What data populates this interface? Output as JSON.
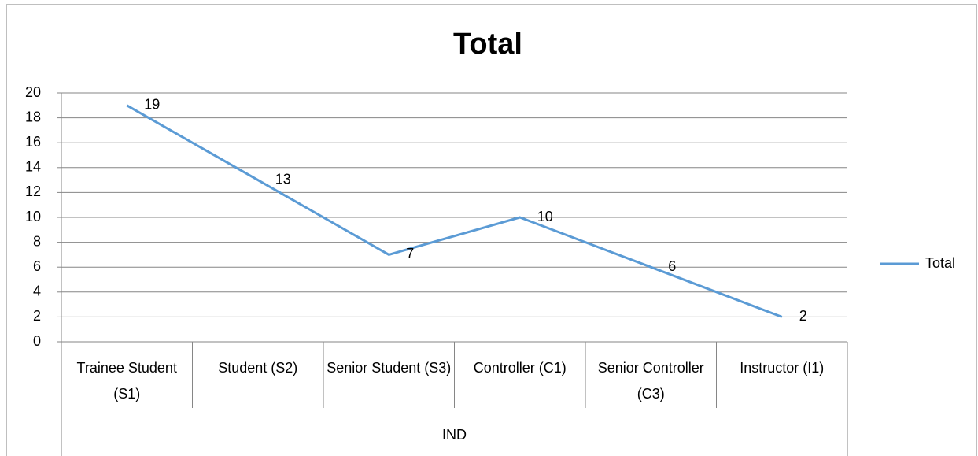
{
  "chart_data": {
    "type": "line",
    "title": "Total",
    "categories": [
      "Trainee Student (S1)",
      "Student (S2)",
      "Senior Student (S3)",
      "Controller (C1)",
      "Senior Controller (C3)",
      "Instructor (I1)"
    ],
    "group_label": "IND",
    "series": [
      {
        "name": "Total",
        "color": "#5b9bd5",
        "values": [
          19,
          13,
          7,
          10,
          6,
          2
        ]
      }
    ],
    "ylim": [
      0,
      20
    ],
    "yticks": [
      0,
      2,
      4,
      6,
      8,
      10,
      12,
      14,
      16,
      18,
      20
    ],
    "grid": true,
    "legend": "right",
    "data_labels": true
  }
}
